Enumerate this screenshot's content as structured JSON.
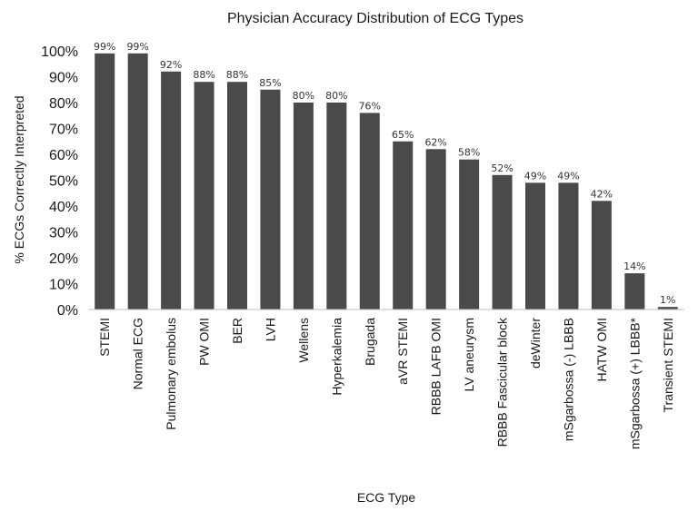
{
  "chart_data": {
    "type": "bar",
    "title": "Physician Accuracy Distribution of ECG Types",
    "xlabel": "ECG Type",
    "ylabel": "% ECGs Correctly Interpreted",
    "ylim": [
      0,
      100
    ],
    "yticks": [
      "0%",
      "10%",
      "20%",
      "30%",
      "40%",
      "50%",
      "60%",
      "70%",
      "80%",
      "90%",
      "100%"
    ],
    "grid": false,
    "legend": "none",
    "bar_color": "#4a4a4a",
    "categories": [
      "STEMI",
      "Normal ECG",
      "Pulmonary embolus",
      "PW OMI",
      "BER",
      "LVH",
      "Wellens",
      "Hyperkalemia",
      "Brugada",
      "aVR STEMI",
      "RBBB LAFB OMI",
      "LV aneurysm",
      "RBBB Fascicular block",
      "deWinter",
      "mSgarbossa (-) LBBB",
      "HATW OMI",
      "mSgarbossa (+) LBBB*",
      "Transient STEMI"
    ],
    "values": [
      99,
      99,
      92,
      88,
      88,
      85,
      80,
      80,
      76,
      65,
      62,
      58,
      52,
      49,
      49,
      42,
      14,
      1
    ],
    "data_labels": [
      "99%",
      "99%",
      "92%",
      "88%",
      "88%",
      "85%",
      "80%",
      "80%",
      "76%",
      "65%",
      "62%",
      "58%",
      "52%",
      "49%",
      "49%",
      "42%",
      "14%",
      "1%"
    ]
  }
}
